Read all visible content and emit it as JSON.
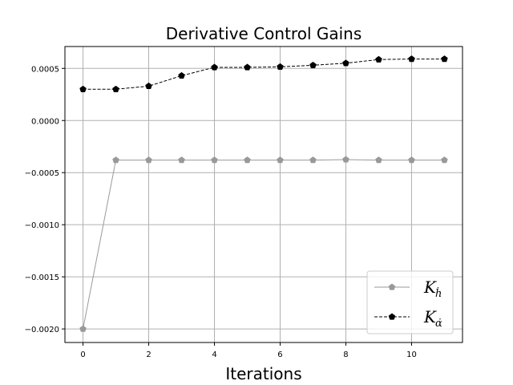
{
  "chart_data": {
    "type": "line",
    "title": "Derivative Control Gains",
    "xlabel": "Iterations",
    "ylabel": "",
    "x": [
      0,
      1,
      2,
      3,
      4,
      5,
      6,
      7,
      8,
      9,
      10,
      11
    ],
    "xlim": [
      -0.55,
      11.55
    ],
    "ylim": [
      -0.00213,
      0.00071
    ],
    "xticks": [
      0,
      2,
      4,
      6,
      8,
      10
    ],
    "xtick_labels": [
      "0",
      "2",
      "4",
      "6",
      "8",
      "10"
    ],
    "yticks": [
      -0.002,
      -0.0015,
      -0.001,
      -0.0005,
      0.0,
      0.0005
    ],
    "ytick_labels": [
      "−0.0020",
      "−0.0015",
      "−0.0010",
      "−0.0005",
      "0.0000",
      "0.0005"
    ],
    "grid": true,
    "legend_position": "lower-right",
    "series": [
      {
        "name": "K_ḣ",
        "legend_main": "K",
        "legend_sub": "ḣ",
        "color": "#999999",
        "line_style": "solid",
        "marker": "pentagon",
        "values": [
          -0.002,
          -0.00038,
          -0.00038,
          -0.00038,
          -0.00038,
          -0.00038,
          -0.00038,
          -0.00038,
          -0.000375,
          -0.00038,
          -0.00038,
          -0.00038
        ]
      },
      {
        "name": "K_α̇",
        "legend_main": "K",
        "legend_sub": "α̇",
        "color": "#000000",
        "line_style": "dashed",
        "marker": "pentagon",
        "values": [
          0.0003,
          0.0003,
          0.00033,
          0.00043,
          0.00051,
          0.00051,
          0.000515,
          0.00053,
          0.00055,
          0.000585,
          0.00059,
          0.00059
        ]
      }
    ]
  }
}
